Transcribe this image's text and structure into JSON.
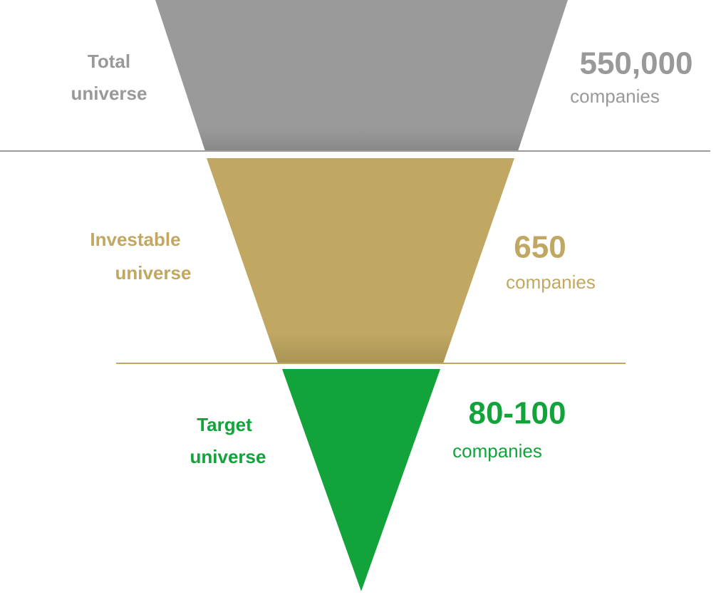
{
  "stages": [
    {
      "label": [
        "Total",
        "universe"
      ],
      "count": "550,000",
      "unit": "companies"
    },
    {
      "label": [
        "Investable",
        "universe"
      ],
      "count": "650",
      "unit": "companies"
    },
    {
      "label": [
        "Target",
        "universe"
      ],
      "count": "80-100",
      "unit": "companies"
    }
  ]
}
